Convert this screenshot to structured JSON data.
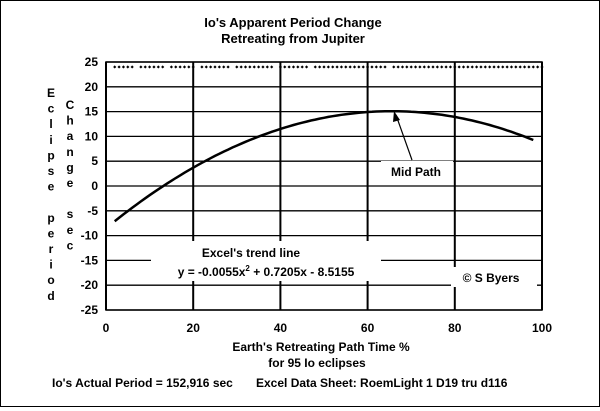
{
  "chart_data": {
    "type": "scatter",
    "title": "Io's Apparent Period Change",
    "subtitle": "Retreating from Jupiter",
    "xlabel": "Earth's Retreating Path Time  %",
    "xlabel2": "for 95 Io eclipses",
    "ylabel_left": [
      "E",
      "c",
      "l",
      "i",
      "p",
      "s",
      "e",
      "",
      "p",
      "e",
      "r",
      "i",
      "o",
      "d"
    ],
    "ylabel_right": [
      "C",
      "h",
      "a",
      "n",
      "g",
      "e",
      "",
      "s",
      "e",
      "c"
    ],
    "xlim": [
      0,
      100
    ],
    "ylim": [
      -25,
      25
    ],
    "x_ticks": [
      "0",
      "20",
      "40",
      "60",
      "80",
      "100"
    ],
    "y_ticks": [
      "25",
      "20",
      "15",
      "10",
      "5",
      "0",
      "-5",
      "-10",
      "-15",
      "-20",
      "-25"
    ],
    "grid": true,
    "series": [
      {
        "name": "",
        "marker": "diamond",
        "x": [
          2,
          3,
          4,
          5,
          6,
          8,
          9,
          10,
          11,
          12,
          13,
          15,
          16,
          17,
          18,
          19,
          20,
          22,
          23,
          24,
          25,
          26,
          27,
          28,
          30,
          31,
          32,
          33,
          34,
          35,
          36,
          37,
          38,
          40,
          41,
          42,
          43,
          44,
          45,
          46,
          48,
          49,
          50,
          51,
          52,
          53,
          54,
          55,
          56,
          57,
          58,
          59,
          60,
          61,
          62,
          63,
          64,
          66,
          67,
          68,
          69,
          70,
          71,
          72,
          73,
          74,
          75,
          76,
          77,
          78,
          79,
          80,
          81,
          82,
          83,
          84,
          85,
          86,
          87,
          88,
          89,
          90,
          91,
          92,
          93,
          94,
          95,
          96,
          97,
          98,
          99,
          100
        ],
        "y": [
          24,
          24,
          24,
          24,
          24,
          24,
          24,
          24,
          24,
          24,
          24,
          24,
          24,
          24,
          24,
          24,
          24,
          24,
          24,
          24,
          24,
          24,
          24,
          24,
          24,
          24,
          24,
          24,
          24,
          24,
          24,
          24,
          24,
          24,
          24,
          24,
          24,
          24,
          24,
          24,
          24,
          24,
          24,
          24,
          24,
          24,
          24,
          24,
          24,
          24,
          24,
          24,
          24,
          24,
          24,
          24,
          24,
          24,
          24,
          24,
          24,
          24,
          24,
          24,
          24,
          24,
          24,
          24,
          24,
          24,
          24,
          24,
          24,
          24,
          24,
          24,
          24,
          24,
          24,
          24,
          24,
          24,
          24,
          24,
          24,
          24,
          24,
          24,
          24,
          24,
          24,
          24
        ]
      }
    ],
    "trendline": {
      "a": -0.0055,
      "b": 0.7205,
      "c": -8.5155,
      "x_range": [
        2,
        98
      ],
      "label": "Excel's trend line",
      "equation_prefix": "y = -0.0055x",
      "equation_sup": "2",
      "equation_suffix": " + 0.7205x - 8.5155"
    },
    "annotations": {
      "mid_path": "Mid Path",
      "copyright": "© S Byers"
    }
  },
  "footer": {
    "left": "Io's Actual Period = 152,916 sec",
    "right": "Excel Data Sheet:  RoemLight 1  D19 tru d116"
  }
}
